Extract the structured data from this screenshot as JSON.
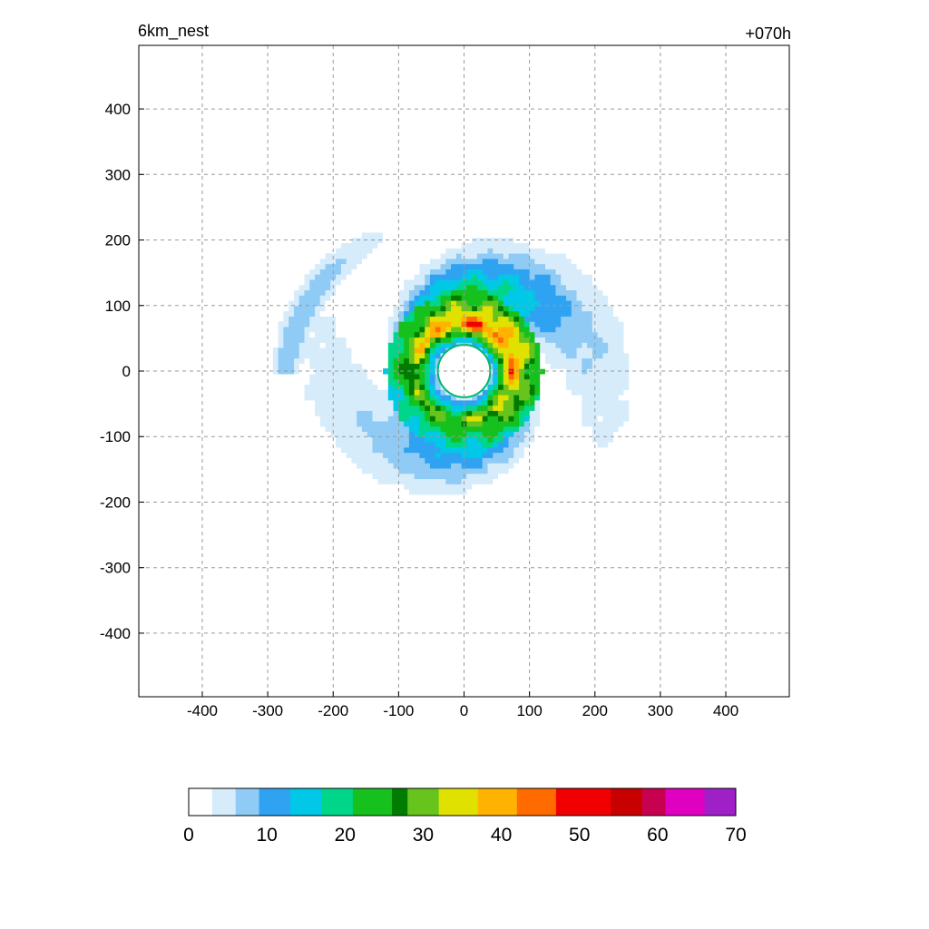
{
  "chart_data": {
    "type": "heatmap",
    "title_left": "6km_nest",
    "title_right": "+070h",
    "xlabel": "",
    "ylabel": "",
    "xlim": [
      -497,
      497
    ],
    "ylim": [
      -497,
      497
    ],
    "x_ticks": [
      -400,
      -300,
      -200,
      -100,
      0,
      100,
      200,
      300,
      400
    ],
    "y_ticks": [
      400,
      300,
      200,
      100,
      0,
      -100,
      -200,
      -300,
      -400
    ],
    "grid": true,
    "colorbar": {
      "range": [
        0,
        70
      ],
      "ticks": [
        0,
        10,
        20,
        30,
        40,
        50,
        60,
        70
      ],
      "stops": [
        {
          "value": 0,
          "color": "#ffffff"
        },
        {
          "value": 3,
          "color": "#d6ecfb"
        },
        {
          "value": 6,
          "color": "#8fcbf5"
        },
        {
          "value": 9,
          "color": "#2fa3f2"
        },
        {
          "value": 13,
          "color": "#00c8e6"
        },
        {
          "value": 17,
          "color": "#00d68a"
        },
        {
          "value": 21,
          "color": "#16c11e"
        },
        {
          "value": 26,
          "color": "#007d00"
        },
        {
          "value": 28,
          "color": "#66c41d"
        },
        {
          "value": 32,
          "color": "#e1e100"
        },
        {
          "value": 37,
          "color": "#ffb300"
        },
        {
          "value": 42,
          "color": "#ff6b00"
        },
        {
          "value": 47,
          "color": "#f00000"
        },
        {
          "value": 54,
          "color": "#c80000"
        },
        {
          "value": 58,
          "color": "#c80050"
        },
        {
          "value": 61,
          "color": "#e000c0"
        },
        {
          "value": 66,
          "color": "#a020c8"
        },
        {
          "value": 70,
          "color": "#a07ae6"
        }
      ]
    },
    "field": {
      "center": [
        0,
        0
      ],
      "eye_radius_km": 40,
      "max_value": 50,
      "max_radius_km": 75,
      "outer_extent_km": 250
    }
  }
}
